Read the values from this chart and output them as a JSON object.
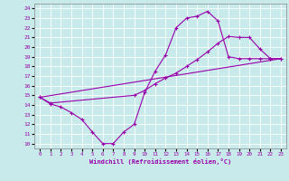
{
  "xlabel": "Windchill (Refroidissement éolien,°C)",
  "bg_color": "#c8eaea",
  "line_color": "#9900aa",
  "grid_color": "#ffffff",
  "xlim": [
    -0.5,
    23.5
  ],
  "ylim": [
    9.5,
    24.5
  ],
  "xticks": [
    0,
    1,
    2,
    3,
    4,
    5,
    6,
    7,
    8,
    9,
    10,
    11,
    12,
    13,
    14,
    15,
    16,
    17,
    18,
    19,
    20,
    21,
    22,
    23
  ],
  "yticks": [
    10,
    11,
    12,
    13,
    14,
    15,
    16,
    17,
    18,
    19,
    20,
    21,
    22,
    23,
    24
  ],
  "line1_x": [
    0,
    1,
    2,
    3,
    4,
    5,
    6,
    7,
    8,
    9,
    10,
    11,
    12,
    13,
    14,
    15,
    16,
    17,
    18,
    19,
    20,
    21,
    22,
    23
  ],
  "line1_y": [
    14.8,
    14.1,
    13.8,
    13.2,
    12.5,
    11.2,
    10.0,
    10.0,
    11.2,
    12.0,
    15.3,
    17.5,
    19.2,
    22.0,
    23.0,
    23.2,
    23.7,
    22.7,
    19.0,
    18.8,
    18.8,
    18.8,
    18.8,
    18.8
  ],
  "line2_x": [
    0,
    1,
    9,
    10,
    11,
    12,
    13,
    14,
    15,
    16,
    17,
    18,
    19,
    20,
    21,
    22,
    23
  ],
  "line2_y": [
    14.8,
    14.2,
    15.0,
    15.5,
    16.2,
    16.8,
    17.3,
    18.0,
    18.7,
    19.5,
    20.4,
    21.1,
    21.0,
    21.0,
    19.8,
    18.8,
    18.8
  ],
  "line3_x": [
    0,
    23
  ],
  "line3_y": [
    14.8,
    18.8
  ]
}
